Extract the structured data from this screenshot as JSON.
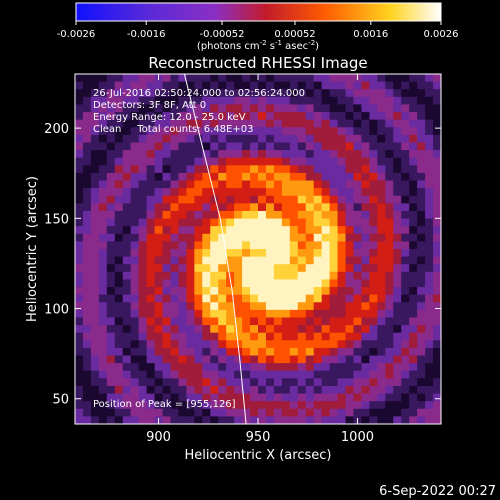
{
  "colorbar": {
    "tick_labels": [
      "-0.0026",
      "-0.0016",
      "-0.00052",
      "0.00052",
      "0.0016",
      "0.0026"
    ],
    "tick_values": [
      -0.0026,
      -0.0016,
      -0.00052,
      0.00052,
      0.0016,
      0.0026
    ],
    "range": [
      -0.0026,
      0.0026
    ],
    "units_main": "(photons cm",
    "units_sup1": "-2",
    "units_mid": " s",
    "units_sup2": "-1",
    "units_mid2": " asec",
    "units_sup3": "-2",
    "units_end": ")",
    "colors": [
      "#1010ff",
      "#8a2fc4",
      "#c21c2c",
      "#ff5a00",
      "#ffd21e",
      "#ffffff"
    ]
  },
  "chart_data": {
    "type": "heatmap",
    "title": "Reconstructed RHESSI Image",
    "xlabel": "Heliocentric X (arcsec)",
    "ylabel": "Heliocentric Y (arcsec)",
    "xlim": [
      858,
      1042
    ],
    "ylim": [
      36,
      230
    ],
    "x_ticks": [
      900,
      950,
      1000
    ],
    "y_ticks": [
      50,
      100,
      150,
      200
    ],
    "x_tick_labels": [
      "900",
      "950",
      "1000"
    ],
    "y_tick_labels": [
      "50",
      "100",
      "150",
      "200"
    ],
    "peak": {
      "x": 955,
      "y": 126
    },
    "limb_curve": {
      "x": [
        913,
        922,
        931,
        937,
        941,
        944
      ],
      "y": [
        230,
        190,
        150,
        110,
        70,
        36
      ]
    },
    "info_lines": [
      "26-Jul-2016 02:50:24.000 to 02:56:24.000",
      "Detectors: 3F 8F, Att 0",
      "Energy Range: 12.0 - 25.0 keV",
      "Clean     Total counts: 6.48E+03"
    ],
    "peak_label": "Position of Peak = [955,126]"
  },
  "timestamp": "6-Sep-2022 00:27"
}
